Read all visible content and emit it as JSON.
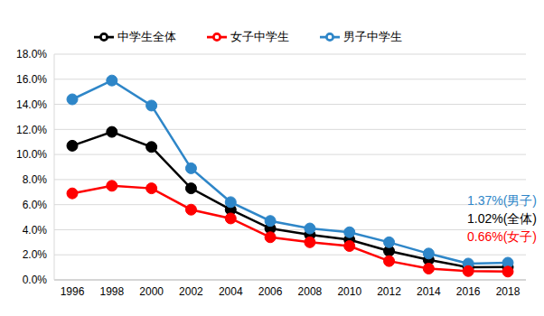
{
  "chart_data": {
    "type": "line",
    "categories": [
      "1996",
      "1998",
      "2000",
      "2002",
      "2004",
      "2006",
      "2008",
      "2010",
      "2012",
      "2014",
      "2016",
      "2018"
    ],
    "series": [
      {
        "name": "中学生全体",
        "color": "#000000",
        "marker": "circle",
        "values": [
          10.7,
          11.8,
          10.6,
          7.3,
          5.6,
          4.1,
          3.6,
          3.2,
          2.3,
          1.6,
          1.0,
          1.02
        ]
      },
      {
        "name": "男子中学生",
        "color": "#2e86c8",
        "marker": "circle",
        "values": [
          14.4,
          15.9,
          13.9,
          8.9,
          6.2,
          4.7,
          4.1,
          3.8,
          3.0,
          2.1,
          1.3,
          1.37
        ]
      },
      {
        "name": "女子中学生",
        "color": "#ff0000",
        "marker": "circle",
        "values": [
          6.9,
          7.5,
          7.3,
          5.6,
          4.9,
          3.4,
          3.0,
          2.7,
          1.5,
          0.9,
          0.7,
          0.66
        ]
      }
    ],
    "ylim": [
      0,
      18
    ],
    "yticks": [
      {
        "value": 0,
        "label": "0.0%"
      },
      {
        "value": 2,
        "label": "2.0%"
      },
      {
        "value": 4,
        "label": "4.0%"
      },
      {
        "value": 6,
        "label": "6.0%"
      },
      {
        "value": 8,
        "label": "8.0%"
      },
      {
        "value": 10,
        "label": "10.0%"
      },
      {
        "value": 12,
        "label": "12.0%"
      },
      {
        "value": 14,
        "label": "14.0%"
      },
      {
        "value": 16,
        "label": "16.0%"
      },
      {
        "value": 18,
        "label": "18.0%"
      }
    ],
    "grid": true,
    "legend": "top",
    "annotations": [
      {
        "text": "1.37%(男子)",
        "color": "#2e86c8"
      },
      {
        "text": "1.02%(全体)",
        "color": "#000000"
      },
      {
        "text": "0.66%(女子)",
        "color": "#ff0000"
      }
    ]
  }
}
